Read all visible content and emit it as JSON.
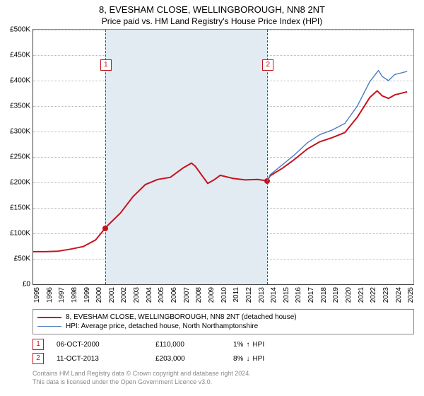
{
  "title": "8, EVESHAM CLOSE, WELLINGBOROUGH, NN8 2NT",
  "subtitle": "Price paid vs. HM Land Registry's House Price Index (HPI)",
  "chart": {
    "type": "line",
    "background_color": "#ffffff",
    "shade_color": "#e2eaf2",
    "grid_color": "#b8b8b8",
    "axis_color": "#404040",
    "x_years": [
      1995,
      1996,
      1997,
      1998,
      1999,
      2000,
      2001,
      2002,
      2003,
      2004,
      2005,
      2006,
      2007,
      2008,
      2009,
      2010,
      2011,
      2012,
      2013,
      2014,
      2015,
      2016,
      2017,
      2018,
      2019,
      2020,
      2021,
      2022,
      2023,
      2024,
      2025
    ],
    "x_min": 1995,
    "x_max": 2025.5,
    "ylim": [
      0,
      500000
    ],
    "ytick_step": 50000,
    "yticks_labels": [
      "£0",
      "£50K",
      "£100K",
      "£150K",
      "£200K",
      "£250K",
      "£300K",
      "£350K",
      "£400K",
      "£450K",
      "£500K"
    ],
    "series": [
      {
        "name": "property",
        "color": "#c5131c",
        "width": 2,
        "points": [
          [
            1995.0,
            64000
          ],
          [
            1996.0,
            64000
          ],
          [
            1997.0,
            65000
          ],
          [
            1998.0,
            69000
          ],
          [
            1999.0,
            74000
          ],
          [
            2000.0,
            87000
          ],
          [
            2000.77,
            110000
          ],
          [
            2001.0,
            116000
          ],
          [
            2002.0,
            140000
          ],
          [
            2003.0,
            172000
          ],
          [
            2004.0,
            196000
          ],
          [
            2005.0,
            206000
          ],
          [
            2006.0,
            210000
          ],
          [
            2007.0,
            228000
          ],
          [
            2007.7,
            238000
          ],
          [
            2008.0,
            232000
          ],
          [
            2008.5,
            215000
          ],
          [
            2009.0,
            198000
          ],
          [
            2009.5,
            205000
          ],
          [
            2010.0,
            214000
          ],
          [
            2011.0,
            208000
          ],
          [
            2012.0,
            205000
          ],
          [
            2013.0,
            206000
          ],
          [
            2013.78,
            203000
          ],
          [
            2014.0,
            213000
          ],
          [
            2015.0,
            228000
          ],
          [
            2016.0,
            246000
          ],
          [
            2017.0,
            266000
          ],
          [
            2018.0,
            280000
          ],
          [
            2019.0,
            288000
          ],
          [
            2020.0,
            298000
          ],
          [
            2021.0,
            328000
          ],
          [
            2022.0,
            367000
          ],
          [
            2022.6,
            380000
          ],
          [
            2023.0,
            370000
          ],
          [
            2023.5,
            365000
          ],
          [
            2024.0,
            372000
          ],
          [
            2025.0,
            378000
          ]
        ]
      },
      {
        "name": "hpi",
        "color": "#4a7cc0",
        "width": 1.4,
        "points": [
          [
            2013.78,
            203000
          ],
          [
            2014.0,
            215000
          ],
          [
            2015.0,
            235000
          ],
          [
            2016.0,
            255000
          ],
          [
            2017.0,
            278000
          ],
          [
            2018.0,
            294000
          ],
          [
            2019.0,
            303000
          ],
          [
            2020.0,
            316000
          ],
          [
            2021.0,
            350000
          ],
          [
            2022.0,
            398000
          ],
          [
            2022.7,
            420000
          ],
          [
            2023.0,
            408000
          ],
          [
            2023.5,
            400000
          ],
          [
            2024.0,
            412000
          ],
          [
            2025.0,
            418000
          ]
        ]
      }
    ],
    "markers": [
      {
        "id": "1",
        "x": 2000.77,
        "y": 110000,
        "color": "#c5131c"
      },
      {
        "id": "2",
        "x": 2013.78,
        "y": 203000,
        "color": "#c5131c"
      }
    ],
    "marker_line_color": "#c5131c",
    "marker_tag_border": "#c5131c",
    "marker_tag_bg": "#ffffff",
    "tag_offset_y": 42
  },
  "legend": {
    "items": [
      {
        "label": "8, EVESHAM CLOSE, WELLINGBOROUGH, NN8 2NT (detached house)",
        "color": "#c5131c",
        "width": 2
      },
      {
        "label": "HPI: Average price, detached house, North Northamptonshire",
        "color": "#4a7cc0",
        "width": 1.4
      }
    ],
    "border_color": "#8b8b8b"
  },
  "sales": [
    {
      "id": "1",
      "date": "06-OCT-2000",
      "price": "£110,000",
      "delta": "1%",
      "arrow": "↑",
      "deltalabel": "HPI",
      "color": "#c5131c"
    },
    {
      "id": "2",
      "date": "11-OCT-2013",
      "price": "£203,000",
      "delta": "8%",
      "arrow": "↓",
      "deltalabel": "HPI",
      "color": "#c5131c"
    }
  ],
  "footer": {
    "line1": "Contains HM Land Registry data © Crown copyright and database right 2024.",
    "line2": "This data is licensed under the Open Government Licence v3.0."
  }
}
